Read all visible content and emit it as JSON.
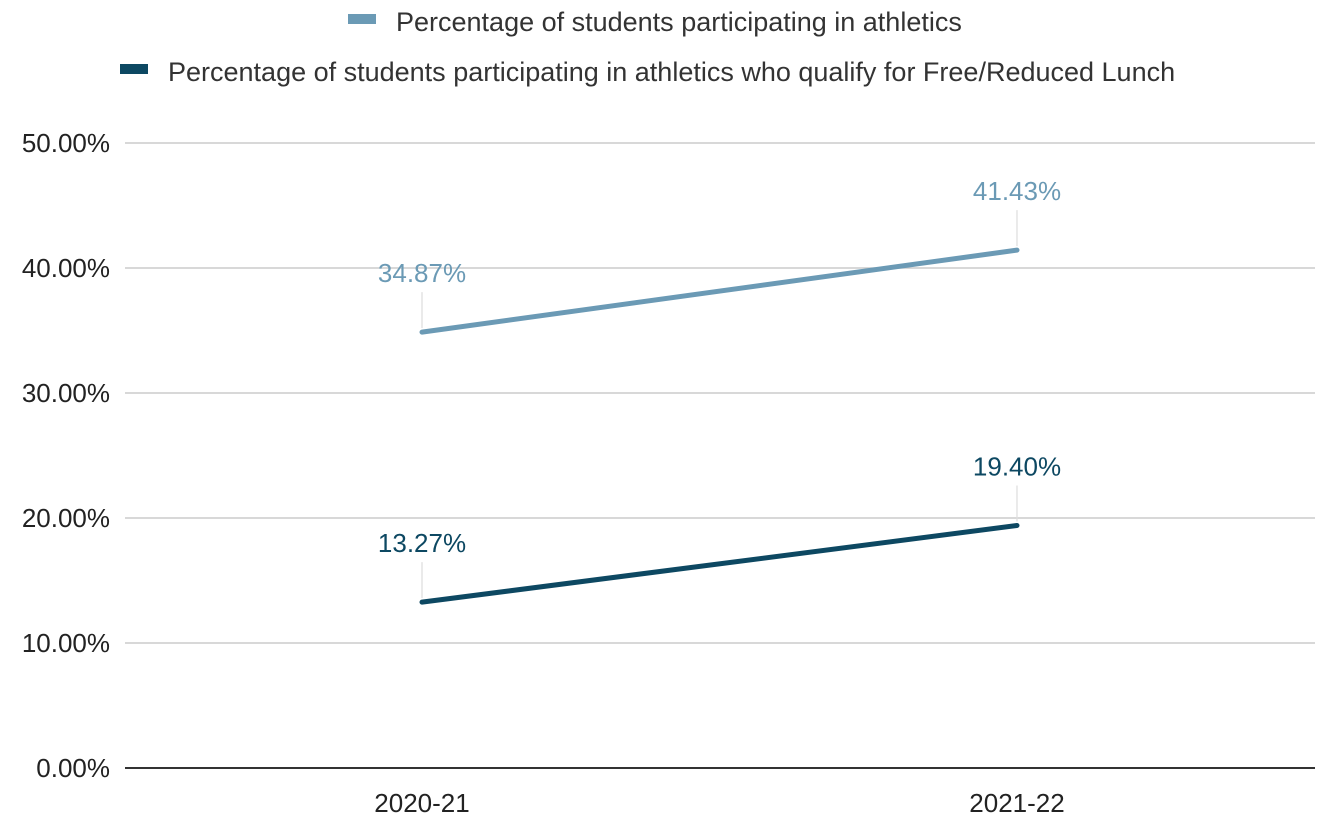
{
  "chart_data": {
    "type": "line",
    "title": "",
    "xlabel": "",
    "ylabel": "",
    "categories": [
      "2020-21",
      "2021-22"
    ],
    "ylim": [
      0,
      50
    ],
    "yticks": [
      0,
      10,
      20,
      30,
      40,
      50
    ],
    "ytick_labels": [
      "0.00%",
      "10.00%",
      "20.00%",
      "30.00%",
      "40.00%",
      "50.00%"
    ],
    "grid": true,
    "legend_position": "top",
    "series": [
      {
        "name": "Percentage of students participating in athletics",
        "values": [
          34.87,
          41.43
        ],
        "labels": [
          "34.87%",
          "41.43%"
        ],
        "color": "#6b9ab5"
      },
      {
        "name": "Percentage of students participating in athletics who qualify for Free/Reduced Lunch",
        "values": [
          13.27,
          19.4
        ],
        "labels": [
          "13.27%",
          "19.40%"
        ],
        "color": "#0d4862"
      }
    ]
  }
}
